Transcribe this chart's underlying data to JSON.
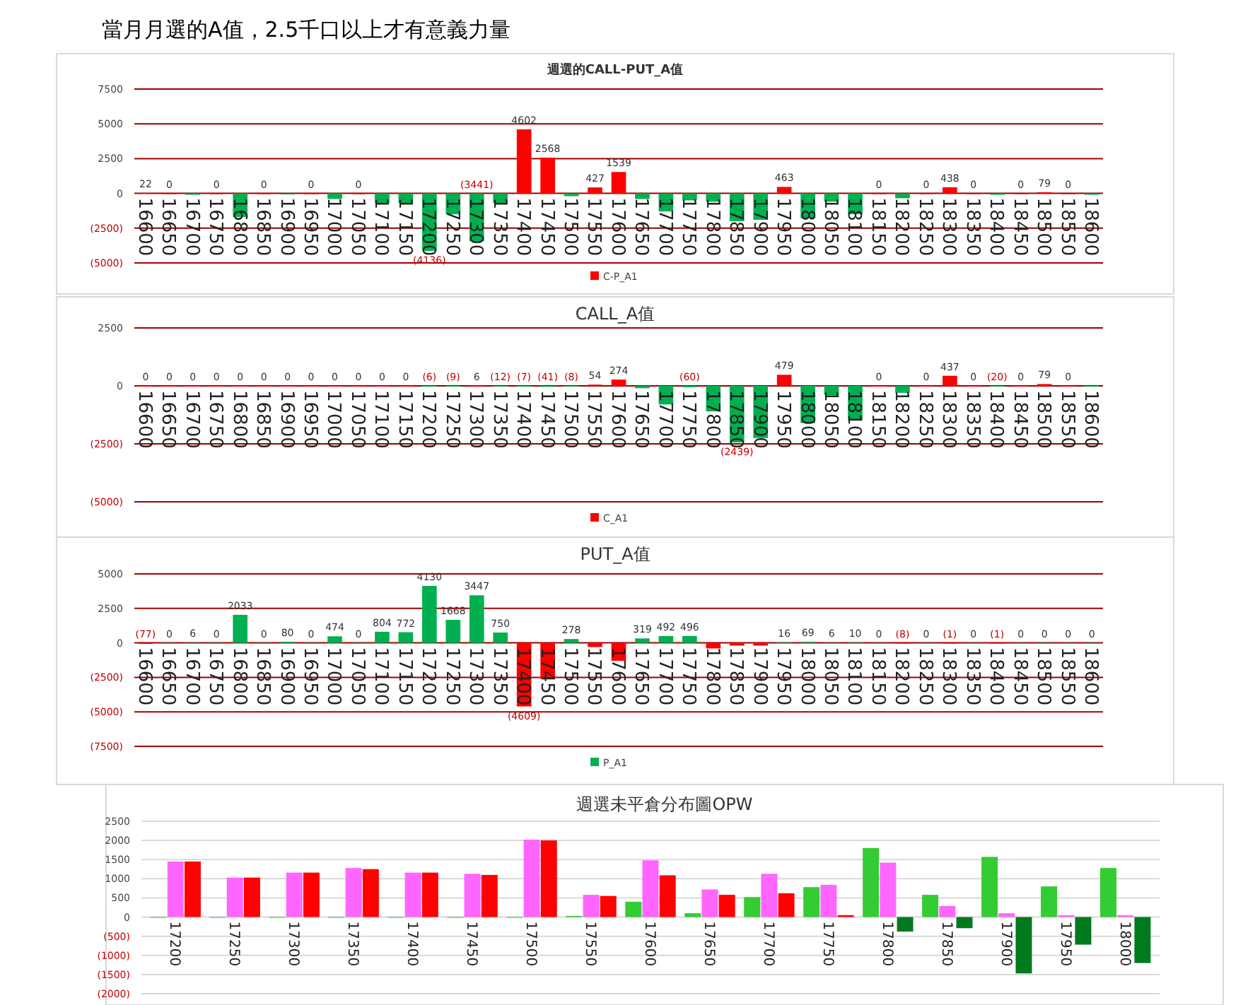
{
  "chart_data": [
    {
      "type": "bar",
      "title": "週選的CALL-PUT_A值",
      "annotations": [
        "當月月選的A值，2.5千口以上才有意義力量"
      ],
      "categories": [
        "16600",
        "16650",
        "16700",
        "16750",
        "16800",
        "16850",
        "16900",
        "16950",
        "17000",
        "17050",
        "17100",
        "17150",
        "17200",
        "17250",
        "17300",
        "17350",
        "17400",
        "17450",
        "17500",
        "17550",
        "17600",
        "17650",
        "17700",
        "17750",
        "17800",
        "17850",
        "17900",
        "17950",
        "18000",
        "18050",
        "18100",
        "18150",
        "18200",
        "18250",
        "18300",
        "18350",
        "18400",
        "18450",
        "18500",
        "18550",
        "18600"
      ],
      "series": [
        {
          "name": "C-P_A1",
          "color": "#ff0000",
          "values": [
            22,
            0,
            -100,
            0,
            -1700,
            0,
            -80,
            0,
            -400,
            0,
            -700,
            -700,
            -4136,
            -1500,
            -3441,
            -700,
            4602,
            2568,
            -200,
            427,
            1539,
            -400,
            -1300,
            -500,
            -600,
            -2000,
            -1900,
            463,
            -1800,
            -600,
            -1500,
            0,
            -350,
            0,
            438,
            0,
            -100,
            0,
            79,
            0,
            -100
          ],
          "colors": [
            "#ff0000",
            "#ff0000",
            "#00b050",
            "#ff0000",
            "#00b050",
            "#ff0000",
            "#00b050",
            "#ff0000",
            "#00b050",
            "#ff0000",
            "#00b050",
            "#00b050",
            "#00b050",
            "#00b050",
            "#00b050",
            "#00b050",
            "#ff0000",
            "#ff0000",
            "#00b050",
            "#ff0000",
            "#ff0000",
            "#00b050",
            "#00b050",
            "#00b050",
            "#00b050",
            "#00b050",
            "#00b050",
            "#ff0000",
            "#00b050",
            "#00b050",
            "#00b050",
            "#ff0000",
            "#00b050",
            "#ff0000",
            "#ff0000",
            "#ff0000",
            "#00b050",
            "#ff0000",
            "#ff0000",
            "#ff0000",
            "#00b050"
          ],
          "value_labels": [
            "22",
            "0",
            null,
            "0",
            null,
            "0",
            null,
            "0",
            null,
            "0",
            null,
            null,
            "(4136)",
            null,
            "(3441)",
            null,
            "4602",
            "2568",
            null,
            "427",
            "1539",
            null,
            null,
            null,
            null,
            null,
            null,
            "463",
            null,
            null,
            null,
            "0",
            null,
            "0",
            "438",
            "0",
            null,
            "0",
            "79",
            "0",
            null
          ]
        }
      ],
      "ylim": [
        -5000,
        7500
      ],
      "yticks": [
        7500,
        5000,
        2500,
        0,
        {
          "value": -2500,
          "label": "(2500)"
        },
        {
          "value": -5000,
          "label": "(5000)"
        }
      ],
      "grid": "y",
      "legend": "bottom"
    },
    {
      "type": "bar",
      "title": "CALL_A值",
      "categories": [
        "16600",
        "16650",
        "16700",
        "16750",
        "16800",
        "16850",
        "16900",
        "16950",
        "17000",
        "17050",
        "17100",
        "17150",
        "17200",
        "17250",
        "17300",
        "17350",
        "17400",
        "17450",
        "17500",
        "17550",
        "17600",
        "17650",
        "17700",
        "17750",
        "17800",
        "17850",
        "17900",
        "17950",
        "18000",
        "18050",
        "18100",
        "18150",
        "18200",
        "18250",
        "18300",
        "18350",
        "18400",
        "18450",
        "18500",
        "18550",
        "18600"
      ],
      "series": [
        {
          "name": "C_A1",
          "color": "#ff0000",
          "values": [
            0,
            0,
            0,
            0,
            0,
            0,
            0,
            0,
            0,
            0,
            0,
            0,
            -6,
            -9,
            6,
            -12,
            -7,
            -41,
            -8,
            54,
            274,
            -100,
            -800,
            -60,
            -1100,
            -2439,
            -2250,
            479,
            -1600,
            -400,
            -1500,
            0,
            -300,
            0,
            437,
            0,
            -20,
            0,
            79,
            0,
            -34
          ],
          "colors": [
            "#ff0000",
            "#ff0000",
            "#ff0000",
            "#ff0000",
            "#ff0000",
            "#ff0000",
            "#ff0000",
            "#ff0000",
            "#ff0000",
            "#ff0000",
            "#ff0000",
            "#ff0000",
            "#00b050",
            "#00b050",
            "#ff0000",
            "#00b050",
            "#00b050",
            "#00b050",
            "#00b050",
            "#ff0000",
            "#ff0000",
            "#00b050",
            "#00b050",
            "#00b050",
            "#00b050",
            "#00b050",
            "#00b050",
            "#ff0000",
            "#00b050",
            "#00b050",
            "#00b050",
            "#ff0000",
            "#00b050",
            "#ff0000",
            "#ff0000",
            "#ff0000",
            "#00b050",
            "#ff0000",
            "#ff0000",
            "#ff0000",
            "#00b050"
          ],
          "value_labels": [
            "0",
            "0",
            "0",
            "0",
            "0",
            "0",
            "0",
            "0",
            "0",
            "0",
            "0",
            "0",
            "(6)",
            "(9)",
            "6",
            "(12)",
            "(7)",
            "(41)",
            "(8)",
            "54",
            "274",
            null,
            null,
            "(60)",
            null,
            "(2439)",
            null,
            "479",
            null,
            null,
            null,
            "0",
            null,
            "0",
            "437",
            "0",
            "(20)",
            "0",
            "79",
            "0",
            null
          ]
        }
      ],
      "ylim": [
        -5000,
        2500
      ],
      "yticks": [
        2500,
        0,
        {
          "value": -2500,
          "label": "(2500)"
        },
        {
          "value": -5000,
          "label": "(5000)"
        }
      ],
      "grid": "y",
      "legend": "bottom"
    },
    {
      "type": "bar",
      "title": "PUT_A值",
      "categories": [
        "16600",
        "16650",
        "16700",
        "16750",
        "16800",
        "16850",
        "16900",
        "16950",
        "17000",
        "17050",
        "17100",
        "17150",
        "17200",
        "17250",
        "17300",
        "17350",
        "17400",
        "17450",
        "17500",
        "17550",
        "17600",
        "17650",
        "17700",
        "17750",
        "17800",
        "17850",
        "17900",
        "17950",
        "18000",
        "18050",
        "18100",
        "18150",
        "18200",
        "18250",
        "18300",
        "18350",
        "18400",
        "18450",
        "18500",
        "18550",
        "18600"
      ],
      "series": [
        {
          "name": "P_A1",
          "color": "#00b050",
          "values": [
            -77,
            0,
            6,
            0,
            2033,
            0,
            80,
            0,
            474,
            0,
            804,
            772,
            4130,
            1668,
            3447,
            750,
            -4609,
            -2600,
            278,
            -300,
            -1300,
            319,
            492,
            496,
            -400,
            -200,
            -200,
            16,
            69,
            6,
            10,
            0,
            -8,
            0,
            -1,
            0,
            -1,
            0,
            0,
            0,
            0
          ],
          "colors": [
            "#ff0000",
            "#00b050",
            "#00b050",
            "#00b050",
            "#00b050",
            "#00b050",
            "#00b050",
            "#00b050",
            "#00b050",
            "#00b050",
            "#00b050",
            "#00b050",
            "#00b050",
            "#00b050",
            "#00b050",
            "#00b050",
            "#ff0000",
            "#ff0000",
            "#00b050",
            "#ff0000",
            "#ff0000",
            "#00b050",
            "#00b050",
            "#00b050",
            "#ff0000",
            "#ff0000",
            "#ff0000",
            "#00b050",
            "#00b050",
            "#00b050",
            "#00b050",
            "#00b050",
            "#ff0000",
            "#00b050",
            "#ff0000",
            "#00b050",
            "#ff0000",
            "#00b050",
            "#00b050",
            "#00b050",
            "#00b050"
          ],
          "value_labels": [
            "(77)",
            "0",
            "6",
            "0",
            "2033",
            "0",
            "80",
            "0",
            "474",
            "0",
            "804",
            "772",
            "4130",
            "1668",
            "3447",
            "750",
            "(4609)",
            null,
            "278",
            null,
            null,
            "319",
            "492",
            "496",
            null,
            null,
            null,
            "16",
            "69",
            "6",
            "10",
            "0",
            "(8)",
            "0",
            "(1)",
            "0",
            "(1)",
            "0",
            "0",
            "0",
            "0"
          ]
        }
      ],
      "ylim": [
        -7500,
        5000
      ],
      "yticks": [
        5000,
        2500,
        0,
        {
          "value": -2500,
          "label": "(2500)"
        },
        {
          "value": -5000,
          "label": "(5000)"
        },
        {
          "value": -7500,
          "label": "(7500)"
        }
      ],
      "grid": "y",
      "legend": "bottom"
    },
    {
      "type": "bar",
      "title": "週選未平倉分布圖OPW",
      "categories": [
        "17200",
        "17250",
        "17300",
        "17350",
        "17400",
        "17450",
        "17500",
        "17550",
        "17600",
        "17650",
        "17700",
        "17750",
        "17800",
        "17850",
        "17900",
        "17950",
        "18000"
      ],
      "series": [
        {
          "color": "#33cc33",
          "values": [
            0,
            0,
            0,
            0,
            0,
            0,
            0,
            30,
            400,
            100,
            520,
            780,
            1800,
            580,
            1570,
            800,
            1280
          ]
        },
        {
          "color": "#ff66ff",
          "values": [
            1450,
            1030,
            1160,
            1280,
            1160,
            1130,
            2020,
            580,
            1480,
            720,
            1130,
            840,
            1420,
            290,
            100,
            50,
            50
          ]
        },
        {
          "color": "#ff0000",
          "values": [
            1450,
            1030,
            1160,
            1250,
            1160,
            1100,
            2000,
            550,
            1090,
            580,
            620,
            50,
            -380,
            -290,
            -1470,
            -720,
            -1200
          ],
          "colors": [
            null,
            null,
            null,
            null,
            null,
            null,
            null,
            null,
            null,
            null,
            null,
            null,
            "#007a1f",
            "#007a1f",
            "#007a1f",
            "#007a1f",
            "#007a1f"
          ]
        }
      ],
      "ylim": [
        -2000,
        2500
      ],
      "yticks": [
        2500,
        2000,
        1500,
        1000,
        500,
        0,
        {
          "value": -500,
          "label": "(500)"
        },
        {
          "value": -1000,
          "label": "(1000)"
        },
        {
          "value": -1500,
          "label": "(1500)"
        },
        {
          "value": -2000,
          "label": "(2000)"
        }
      ],
      "grid": "y",
      "legend": false
    }
  ]
}
